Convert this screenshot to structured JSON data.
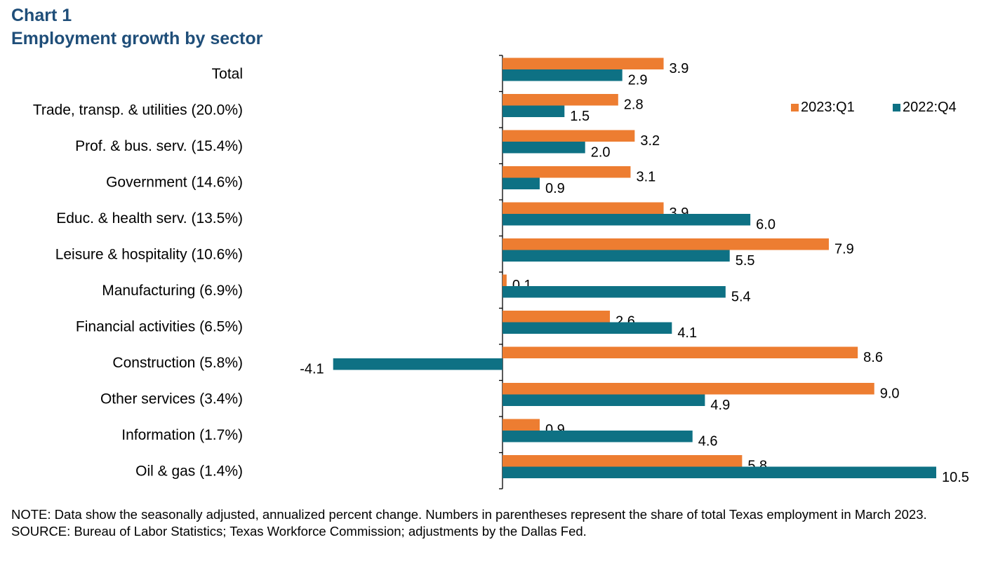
{
  "header": {
    "chart_number": "Chart 1",
    "title": "Employment growth by sector"
  },
  "colors": {
    "title": "#1f4e79",
    "series_2023q1": "#ed7d31",
    "series_2022q4": "#0e7184",
    "axis": "#000000"
  },
  "chart_data": {
    "type": "bar",
    "orientation": "horizontal",
    "title": "Employment growth by sector",
    "categories": [
      "Total",
      "Trade, transp. & utilities (20.0%)",
      "Prof. & bus. serv. (15.4%)",
      "Government (14.6%)",
      "Educ. & health serv. (13.5%)",
      "Leisure & hospitality (10.6%)",
      "Manufacturing (6.9%)",
      "Financial activities (6.5%)",
      "Construction (5.8%)",
      "Other services (3.4%)",
      "Information (1.7%)",
      "Oil & gas (1.4%)"
    ],
    "series": [
      {
        "name": "2023:Q1",
        "values": [
          3.9,
          2.8,
          3.2,
          3.1,
          3.9,
          7.9,
          0.1,
          2.6,
          8.6,
          9.0,
          0.9,
          5.8
        ],
        "labels": [
          "3.9",
          "2.8",
          "3.2",
          "3.1",
          "3.9",
          "7.9",
          "0.1",
          "2.6",
          "8.6",
          "9.0",
          "0.9",
          "5.8"
        ]
      },
      {
        "name": "2022:Q4",
        "values": [
          2.9,
          1.5,
          2.0,
          0.9,
          6.0,
          5.5,
          5.4,
          4.1,
          -4.1,
          4.9,
          4.6,
          10.5
        ],
        "labels": [
          "2.9",
          "1.5",
          "2.0",
          "0.9",
          "6.0",
          "5.5",
          "5.4",
          "4.1",
          "-4.1",
          "4.9",
          "4.6",
          "10.5"
        ]
      }
    ],
    "xlim": [
      -5,
      12
    ],
    "xlabel": "",
    "ylabel": "",
    "grid": false,
    "legend": "top-right"
  },
  "notes": {
    "note": "NOTE: Data show the seasonally adjusted, annualized percent change. Numbers in parentheses represent the share of total Texas employment in March 2023.",
    "source": "SOURCE: Bureau of Labor Statistics; Texas Workforce Commission; adjustments by the Dallas Fed."
  }
}
